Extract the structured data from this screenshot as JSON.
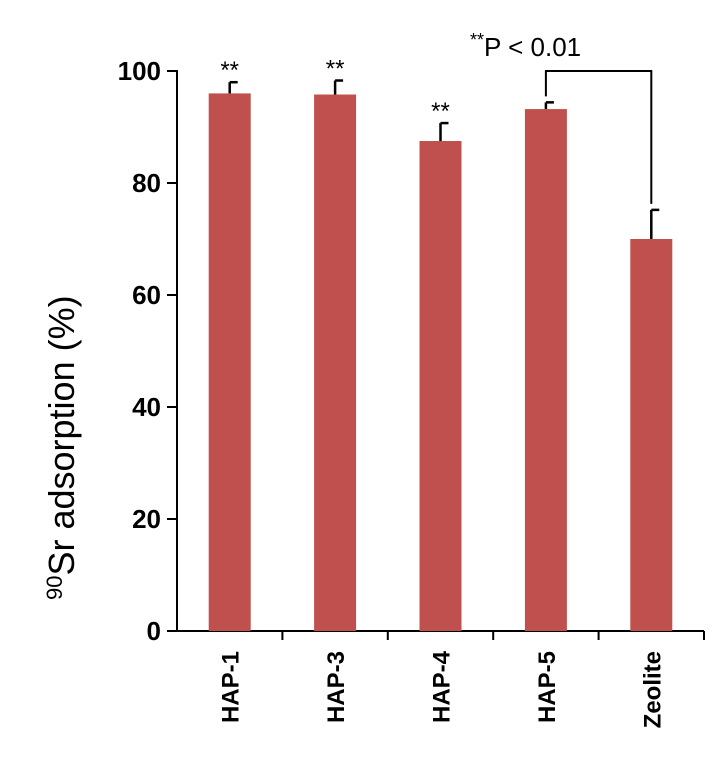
{
  "chart_data": {
    "type": "bar",
    "categories": [
      "HAP-1",
      "HAP-3",
      "HAP-4",
      "HAP-5",
      "Zeolite"
    ],
    "values": [
      96,
      95.8,
      87.5,
      93.2,
      70
    ],
    "errors": [
      2,
      2.5,
      3.2,
      1.2,
      5.2
    ],
    "significance": [
      "**",
      "**",
      "**",
      "",
      ""
    ],
    "ylabel": {
      "superscript": "90",
      "text": "Sr adsorption  (%)"
    },
    "yticks": [
      "0",
      "20",
      "40",
      "60",
      "80",
      "100"
    ],
    "ylim": [
      0,
      100
    ],
    "comparison": {
      "from": "HAP-5",
      "to": "Zeolite",
      "superscript": "**",
      "text": "P < 0.01"
    },
    "bar_color": "#c0504d"
  }
}
